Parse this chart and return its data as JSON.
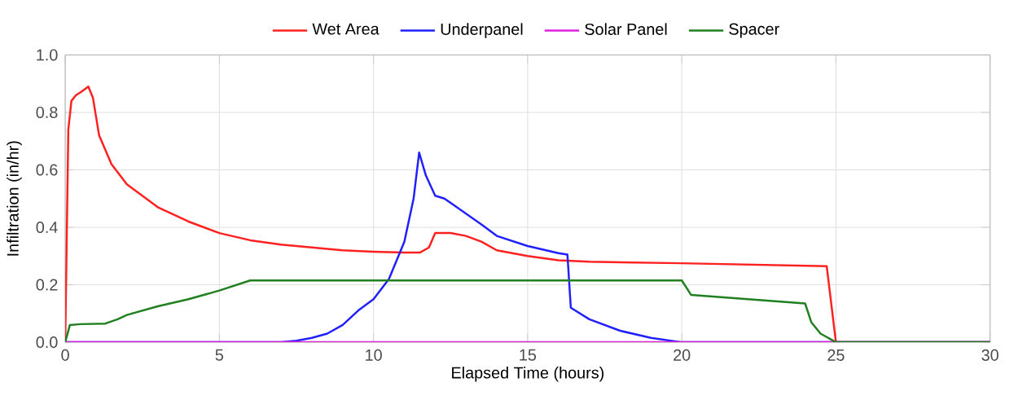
{
  "chart_data": {
    "type": "line",
    "xlabel": "Elapsed Time (hours)",
    "ylabel": "Infiltration (in/hr)",
    "xlim": [
      0,
      30
    ],
    "ylim": [
      0,
      1.0
    ],
    "xticks": [
      0,
      5,
      10,
      15,
      20,
      25,
      30
    ],
    "yticks": [
      {
        "value": 0,
        "label": "0.0"
      },
      {
        "value": 0.2,
        "label": "0.2"
      },
      {
        "value": 0.4,
        "label": "0.4"
      },
      {
        "value": 0.6,
        "label": "0.6"
      },
      {
        "value": 0.8,
        "label": "0.8"
      },
      {
        "value": 1.0,
        "label": "1.0"
      }
    ],
    "grid": true,
    "legend": "top",
    "marker": "none",
    "line_style": "solid",
    "series": [
      {
        "name": "Wet Area",
        "color": "#ff2020",
        "x": [
          0,
          0.1,
          0.2,
          0.35,
          0.5,
          0.75,
          0.9,
          1.1,
          1.5,
          2,
          2.5,
          3,
          4,
          5,
          6,
          7,
          8,
          9,
          10,
          11,
          11.5,
          11.8,
          12.0,
          12.5,
          13,
          13.5,
          14,
          15,
          16,
          17,
          20,
          24.7,
          25,
          30
        ],
        "values": [
          0,
          0.74,
          0.84,
          0.86,
          0.87,
          0.89,
          0.85,
          0.72,
          0.62,
          0.55,
          0.51,
          0.47,
          0.42,
          0.38,
          0.355,
          0.34,
          0.33,
          0.32,
          0.315,
          0.312,
          0.312,
          0.33,
          0.38,
          0.38,
          0.37,
          0.35,
          0.32,
          0.3,
          0.285,
          0.28,
          0.275,
          0.265,
          0,
          0
        ]
      },
      {
        "name": "Underpanel",
        "color": "#2020ff",
        "x": [
          0,
          7,
          7.5,
          8,
          8.5,
          9,
          9.5,
          10,
          10.5,
          11,
          11.3,
          11.48,
          11.7,
          12,
          12.3,
          12.7,
          13.5,
          14,
          15,
          16,
          16.29,
          16.4,
          17,
          18,
          19,
          20,
          30
        ],
        "values": [
          0,
          0,
          0.005,
          0.015,
          0.03,
          0.06,
          0.11,
          0.15,
          0.22,
          0.35,
          0.5,
          0.66,
          0.58,
          0.51,
          0.5,
          0.47,
          0.41,
          0.37,
          0.335,
          0.31,
          0.305,
          0.12,
          0.08,
          0.04,
          0.015,
          0,
          0
        ]
      },
      {
        "name": "Solar Panel",
        "color": "#e020e0",
        "x": [
          0,
          30
        ],
        "values": [
          0,
          0
        ]
      },
      {
        "name": "Spacer",
        "color": "#208020",
        "x": [
          0,
          0.15,
          0.5,
          1.3,
          1.7,
          2,
          3,
          4,
          5,
          6,
          20,
          20.3,
          24,
          24.2,
          24.5,
          25,
          30
        ],
        "values": [
          0,
          0.06,
          0.063,
          0.065,
          0.08,
          0.095,
          0.125,
          0.15,
          0.18,
          0.215,
          0.215,
          0.165,
          0.135,
          0.07,
          0.03,
          0,
          0
        ]
      }
    ]
  }
}
